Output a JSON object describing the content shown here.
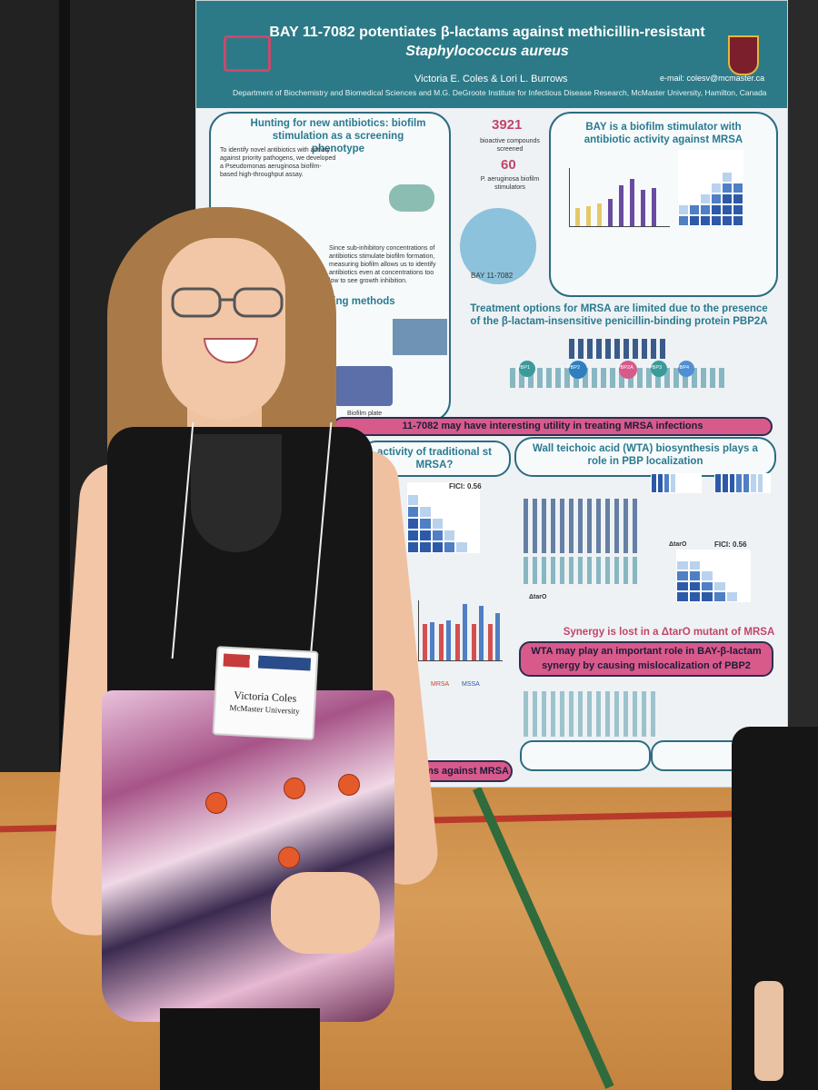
{
  "poster": {
    "title": "BAY 11-7082 potentiates β-lactams against methicillin-resistant",
    "title_italic": "Staphylococcus aureus",
    "authors": "Victoria E. Coles & Lori L. Burrows",
    "email": "e-mail: colesv@mcmaster.ca",
    "affiliation": "Department of Biochemistry and Biomedical Sciences and M.G. DeGroote Institute for Infectious Disease Research, McMaster University, Hamilton, Canada",
    "panel1_title": "Hunting for new antibiotics: biofilm stimulation as a screening phenotype",
    "panel1_text": "To identify novel antibiotics with activity against priority pathogens, we developed a Pseudomonas aeruginosa biofilm-based high-throughput assay.",
    "panel1_text2": "Since sub-inhibitory concentrations of antibiotics stimulate biofilm formation, measuring biofilm allows us to identify antibiotics even at concentrations too low to see growth inhibition.",
    "screening_title": "reening methods",
    "plate_label": "Biofilm plate",
    "num1": "3921",
    "num1_label": "bioactive compounds screened",
    "num2": "60",
    "num2_label": "P. aeruginosa biofilm stimulators",
    "compound": "BAY 11-7082",
    "panel2_title": "BAY is a biofilm stimulator with antibiotic activity against MRSA",
    "mrsa_title": "Treatment options for MRSA are limited due to the presence of the β-lactam-insensitive penicillin-binding protein PBP2A",
    "banner1": "11-7082 may have interesting utility in treating MRSA infections",
    "panel3_title": "activity of traditional st MRSA?",
    "fici1": "FICI: 0.56",
    "panel4_title": "Wall teichoic acid (WTA) biosynthesis plays a role in PBP localization",
    "fici2": "FICI: 0.56",
    "tarO_label": "ΔtarO",
    "synergy_lost": "Synergy is lost in a ΔtarO mutant of MRSA",
    "banner2": "WTA may play an important role in BAY-β-lactam synergy by causing mislocalization of PBP2",
    "banner3": "lactams against MRSA",
    "legend_mrsa": "MRSA",
    "legend_mssa": "MSSA",
    "pbp_labels": [
      "PBP1",
      "PBP2",
      "PBP2A",
      "PBP3",
      "PBP4"
    ]
  },
  "badge": {
    "name": "Victoria Coles",
    "org": "McMaster University"
  },
  "colors": {
    "poster_header": "#2c7a87",
    "accent_pink": "#d85a8b",
    "panel_border": "#2c6c80"
  }
}
